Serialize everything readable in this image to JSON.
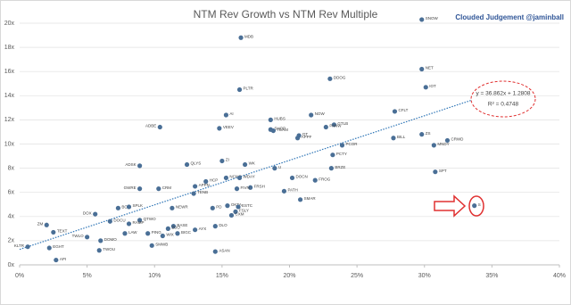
{
  "chart_data": {
    "type": "scatter",
    "title": "NTM Rev Growth vs NTM Rev Multiple",
    "watermark": "Clouded Judgement @jaminball",
    "color": "#4a6f96",
    "grid": true,
    "xlim": [
      0,
      40
    ],
    "ylim": [
      0,
      20
    ],
    "xticks": [
      {
        "value": 0,
        "label": "0%"
      },
      {
        "value": 5,
        "label": "5%"
      },
      {
        "value": 10,
        "label": "10%"
      },
      {
        "value": 15,
        "label": "15%"
      },
      {
        "value": 20,
        "label": "20%"
      },
      {
        "value": 25,
        "label": "25%"
      },
      {
        "value": 30,
        "label": "30%"
      },
      {
        "value": 35,
        "label": "35%"
      },
      {
        "value": 40,
        "label": "40%"
      }
    ],
    "yticks": [
      {
        "value": 0,
        "label": "0x"
      },
      {
        "value": 2,
        "label": "2x"
      },
      {
        "value": 4,
        "label": "4x"
      },
      {
        "value": 6,
        "label": "6x"
      },
      {
        "value": 8,
        "label": "8x"
      },
      {
        "value": 10,
        "label": "10x"
      },
      {
        "value": 12,
        "label": "12x"
      },
      {
        "value": 14,
        "label": "14x"
      },
      {
        "value": 16,
        "label": "16x"
      },
      {
        "value": 18,
        "label": "18x"
      },
      {
        "value": 20,
        "label": "20x"
      }
    ],
    "labels": [
      "SNOW",
      "NET",
      "IOT",
      "MDB",
      "DDOG",
      "PLTR",
      "CFLT",
      "AI",
      "VEEV",
      "ADBE",
      "HUBS",
      "NOW",
      "GTLB",
      "PANW",
      "SHOP",
      "TEAM",
      "ZS",
      "DT",
      "APPF",
      "BILL",
      "CRWD",
      "MNDY",
      "PCOR",
      "PCTY",
      "ZI",
      "WK",
      "QLYS",
      "ADSK",
      "U",
      "BRZE",
      "SPT",
      "DOCN",
      "FROG",
      "HCP",
      "NCNO",
      "WDAY",
      "APPN",
      "GWRE",
      "CRM",
      "FRSH",
      "TENB",
      "FIVN",
      "PATH",
      "SMAR",
      "PD",
      "OKTA",
      "ESTC",
      "BOX",
      "SPLK",
      "NEWR",
      "FSLY",
      "CXM",
      "DOX",
      "DOCU",
      "QTWO",
      "RAMP",
      "ZM",
      "TEXT",
      "BASE",
      "ZUO",
      "AYX",
      "DLO",
      "LAW",
      "PING",
      "WIX",
      "BIGC",
      "TWLO",
      "DOMO",
      "EGHT",
      "KLTR",
      "TWOU",
      "SMWB",
      "ASAN",
      "API",
      "S"
    ],
    "x": [
      29.8,
      29.8,
      30.1,
      16.4,
      23.0,
      16.3,
      27.8,
      15.3,
      14.8,
      10.4,
      18.6,
      21.6,
      23.3,
      22.7,
      18.6,
      18.8,
      29.8,
      20.7,
      20.6,
      27.7,
      31.7,
      30.7,
      23.9,
      23.2,
      15.0,
      16.7,
      12.4,
      8.9,
      18.9,
      23.1,
      30.8,
      20.2,
      21.9,
      13.8,
      15.3,
      16.3,
      13.0,
      8.9,
      10.3,
      17.1,
      12.9,
      16.1,
      19.6,
      20.8,
      14.3,
      15.4,
      16.2,
      7.3,
      8.1,
      11.3,
      16.0,
      15.7,
      5.6,
      6.7,
      8.9,
      8.1,
      2.0,
      2.5,
      11.4,
      11.0,
      13.0,
      14.5,
      7.8,
      9.5,
      10.6,
      11.7,
      5.0,
      6.0,
      2.2,
      0.6,
      5.9,
      9.8,
      14.5,
      2.7,
      33.7
    ],
    "values": [
      20.3,
      16.2,
      14.7,
      18.8,
      15.4,
      14.5,
      12.7,
      12.4,
      11.3,
      11.4,
      12.0,
      12.4,
      11.6,
      11.4,
      11.2,
      11.1,
      10.8,
      10.7,
      10.5,
      10.5,
      10.3,
      9.9,
      9.9,
      9.1,
      8.6,
      8.3,
      8.3,
      8.2,
      8.0,
      8.0,
      7.7,
      7.2,
      7.0,
      6.9,
      7.2,
      7.2,
      6.5,
      6.3,
      6.3,
      6.4,
      5.9,
      6.3,
      6.1,
      5.4,
      4.7,
      4.9,
      4.8,
      4.7,
      4.8,
      4.7,
      4.4,
      4.1,
      4.2,
      3.6,
      3.7,
      3.4,
      3.3,
      2.7,
      3.2,
      3.0,
      2.9,
      3.2,
      2.6,
      2.6,
      2.4,
      2.6,
      2.3,
      2.0,
      1.4,
      1.5,
      1.2,
      1.6,
      1.1,
      0.4,
      4.9
    ],
    "trendline": {
      "x": [
        0,
        33.5
      ],
      "values": [
        1.28,
        13.63
      ],
      "label": "y = 36.862x + 1.2808",
      "r2_label": "R² = 0.4748"
    }
  }
}
